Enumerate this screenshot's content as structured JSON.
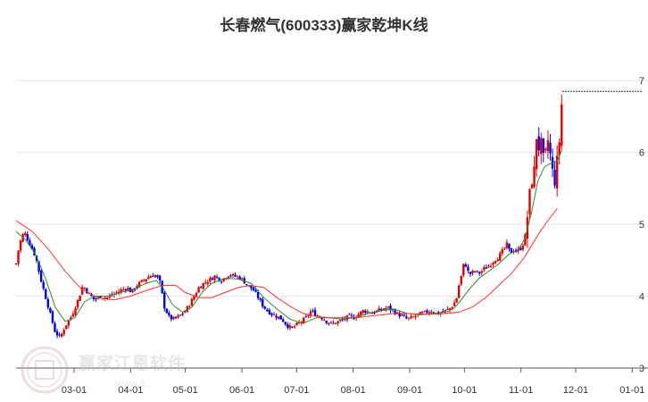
{
  "chart_data": {
    "type": "candlestick",
    "title": "长春燃气(600333)赢家乾坤K线",
    "xlabel": "",
    "ylabel": "",
    "ylim": [
      3,
      7.5
    ],
    "y_ticks": [
      3,
      4,
      5,
      6,
      7
    ],
    "x_tick_labels": [
      "03-01",
      "04-01",
      "05-01",
      "06-01",
      "07-01",
      "08-01",
      "09-01",
      "10-01",
      "11-01",
      "12-01",
      "01-01"
    ],
    "grid": true,
    "colors": {
      "up": "#e60000",
      "down": "#0000ee",
      "ma_short": "#2e8b2e",
      "ma_long": "#ff3333",
      "grid": "#e6e6e6"
    },
    "price_path": [
      [
        0,
        4.45
      ],
      [
        2,
        4.72
      ],
      [
        5,
        4.9
      ],
      [
        8,
        4.75
      ],
      [
        12,
        4.55
      ],
      [
        15,
        4.25
      ],
      [
        18,
        4.0
      ],
      [
        21,
        3.75
      ],
      [
        24,
        3.5
      ],
      [
        27,
        3.42
      ],
      [
        30,
        3.58
      ],
      [
        34,
        3.72
      ],
      [
        38,
        3.95
      ],
      [
        41,
        4.15
      ],
      [
        44,
        4.05
      ],
      [
        48,
        3.95
      ],
      [
        52,
        4.0
      ],
      [
        56,
        3.98
      ],
      [
        60,
        4.03
      ],
      [
        64,
        4.08
      ],
      [
        68,
        4.12
      ],
      [
        71,
        4.05
      ],
      [
        74,
        4.15
      ],
      [
        78,
        4.22
      ],
      [
        82,
        4.28
      ],
      [
        85,
        4.3
      ],
      [
        88,
        4.22
      ],
      [
        91,
        3.85
      ],
      [
        94,
        3.7
      ],
      [
        97,
        3.68
      ],
      [
        100,
        3.72
      ],
      [
        104,
        3.8
      ],
      [
        108,
        3.95
      ],
      [
        112,
        4.12
      ],
      [
        115,
        4.18
      ],
      [
        118,
        4.22
      ],
      [
        122,
        4.28
      ],
      [
        126,
        4.22
      ],
      [
        130,
        4.3
      ],
      [
        134,
        4.28
      ],
      [
        138,
        4.25
      ],
      [
        142,
        4.15
      ],
      [
        145,
        4.1
      ],
      [
        148,
        4.0
      ],
      [
        151,
        3.88
      ],
      [
        154,
        3.8
      ],
      [
        157,
        3.75
      ],
      [
        160,
        3.72
      ],
      [
        163,
        3.68
      ],
      [
        166,
        3.6
      ],
      [
        169,
        3.55
      ],
      [
        172,
        3.6
      ],
      [
        175,
        3.65
      ],
      [
        178,
        3.7
      ],
      [
        181,
        3.8
      ],
      [
        183,
        3.75
      ],
      [
        186,
        3.72
      ],
      [
        189,
        3.68
      ],
      [
        192,
        3.62
      ],
      [
        195,
        3.62
      ],
      [
        198,
        3.65
      ],
      [
        201,
        3.68
      ],
      [
        204,
        3.72
      ],
      [
        207,
        3.7
      ],
      [
        210,
        3.75
      ],
      [
        213,
        3.8
      ],
      [
        216,
        3.78
      ],
      [
        219,
        3.77
      ],
      [
        222,
        3.8
      ],
      [
        225,
        3.82
      ],
      [
        228,
        3.84
      ],
      [
        231,
        3.8
      ],
      [
        234,
        3.75
      ],
      [
        237,
        3.72
      ],
      [
        240,
        3.68
      ],
      [
        243,
        3.7
      ],
      [
        246,
        3.74
      ],
      [
        249,
        3.76
      ],
      [
        252,
        3.78
      ],
      [
        255,
        3.8
      ],
      [
        258,
        3.75
      ],
      [
        261,
        3.78
      ],
      [
        264,
        3.8
      ],
      [
        267,
        3.85
      ],
      [
        270,
        3.95
      ],
      [
        272,
        4.2
      ],
      [
        274,
        4.35
      ],
      [
        275,
        4.55
      ],
      [
        276,
        4.4
      ],
      [
        278,
        4.3
      ],
      [
        281,
        4.35
      ],
      [
        284,
        4.32
      ],
      [
        287,
        4.38
      ],
      [
        290,
        4.42
      ],
      [
        293,
        4.5
      ],
      [
        296,
        4.55
      ],
      [
        299,
        4.65
      ],
      [
        301,
        4.72
      ],
      [
        303,
        4.6
      ],
      [
        305,
        4.65
      ],
      [
        307,
        4.62
      ],
      [
        310,
        4.68
      ],
      [
        312,
        4.8
      ],
      [
        314,
        5.2
      ],
      [
        316,
        5.6
      ],
      [
        318,
        5.75
      ],
      [
        319,
        6.2
      ],
      [
        320,
        6.35
      ],
      [
        321,
        5.9
      ],
      [
        322,
        6.1
      ],
      [
        324,
        5.8
      ],
      [
        326,
        6.2
      ],
      [
        328,
        5.9
      ],
      [
        330,
        5.55
      ],
      [
        332,
        5.9
      ],
      [
        333,
        6.1
      ],
      [
        334,
        6.4
      ],
      [
        335,
        6.85
      ]
    ],
    "series": [
      {
        "values": [
          [
            0,
            4.9
          ],
          [
            6,
            4.78
          ],
          [
            12,
            4.58
          ],
          [
            18,
            4.25
          ],
          [
            24,
            3.85
          ],
          [
            30,
            3.65
          ],
          [
            36,
            3.7
          ],
          [
            42,
            3.92
          ],
          [
            48,
            4.0
          ],
          [
            56,
            4.0
          ],
          [
            64,
            4.05
          ],
          [
            72,
            4.1
          ],
          [
            80,
            4.18
          ],
          [
            86,
            4.22
          ],
          [
            90,
            4.12
          ],
          [
            96,
            3.88
          ],
          [
            102,
            3.78
          ],
          [
            108,
            3.85
          ],
          [
            114,
            4.05
          ],
          [
            120,
            4.18
          ],
          [
            128,
            4.25
          ],
          [
            136,
            4.24
          ],
          [
            144,
            4.18
          ],
          [
            152,
            3.98
          ],
          [
            160,
            3.82
          ],
          [
            168,
            3.68
          ],
          [
            176,
            3.62
          ],
          [
            184,
            3.7
          ],
          [
            192,
            3.7
          ],
          [
            200,
            3.68
          ],
          [
            208,
            3.7
          ],
          [
            216,
            3.76
          ],
          [
            224,
            3.8
          ],
          [
            232,
            3.82
          ],
          [
            240,
            3.76
          ],
          [
            248,
            3.74
          ],
          [
            256,
            3.76
          ],
          [
            264,
            3.78
          ],
          [
            268,
            3.82
          ],
          [
            272,
            3.92
          ],
          [
            278,
            4.1
          ],
          [
            284,
            4.25
          ],
          [
            290,
            4.35
          ],
          [
            296,
            4.45
          ],
          [
            302,
            4.58
          ],
          [
            308,
            4.65
          ],
          [
            312,
            4.8
          ],
          [
            316,
            5.15
          ],
          [
            320,
            5.6
          ],
          [
            324,
            5.8
          ],
          [
            328,
            5.85
          ],
          [
            332,
            5.88
          ],
          [
            335,
            6.05
          ]
        ]
      },
      {
        "values": [
          [
            0,
            5.05
          ],
          [
            10,
            4.9
          ],
          [
            20,
            4.65
          ],
          [
            30,
            4.35
          ],
          [
            40,
            4.1
          ],
          [
            50,
            3.98
          ],
          [
            60,
            3.95
          ],
          [
            70,
            4.0
          ],
          [
            80,
            4.08
          ],
          [
            90,
            4.15
          ],
          [
            98,
            4.15
          ],
          [
            104,
            4.05
          ],
          [
            112,
            3.98
          ],
          [
            120,
            3.98
          ],
          [
            128,
            4.05
          ],
          [
            136,
            4.12
          ],
          [
            144,
            4.15
          ],
          [
            152,
            4.12
          ],
          [
            160,
            3.98
          ],
          [
            168,
            3.86
          ],
          [
            176,
            3.76
          ],
          [
            184,
            3.72
          ],
          [
            192,
            3.7
          ],
          [
            200,
            3.7
          ],
          [
            208,
            3.7
          ],
          [
            216,
            3.72
          ],
          [
            224,
            3.74
          ],
          [
            232,
            3.76
          ],
          [
            240,
            3.76
          ],
          [
            248,
            3.75
          ],
          [
            256,
            3.75
          ],
          [
            264,
            3.76
          ],
          [
            272,
            3.78
          ],
          [
            280,
            3.85
          ],
          [
            288,
            3.98
          ],
          [
            296,
            4.15
          ],
          [
            304,
            4.32
          ],
          [
            312,
            4.55
          ],
          [
            320,
            4.85
          ],
          [
            326,
            5.05
          ],
          [
            332,
            5.22
          ]
        ]
      }
    ],
    "last_price_line": 6.85
  },
  "watermark": {
    "text": "赢家江恩软件",
    "seal_text": "赢家",
    "url": "www.3..."
  }
}
